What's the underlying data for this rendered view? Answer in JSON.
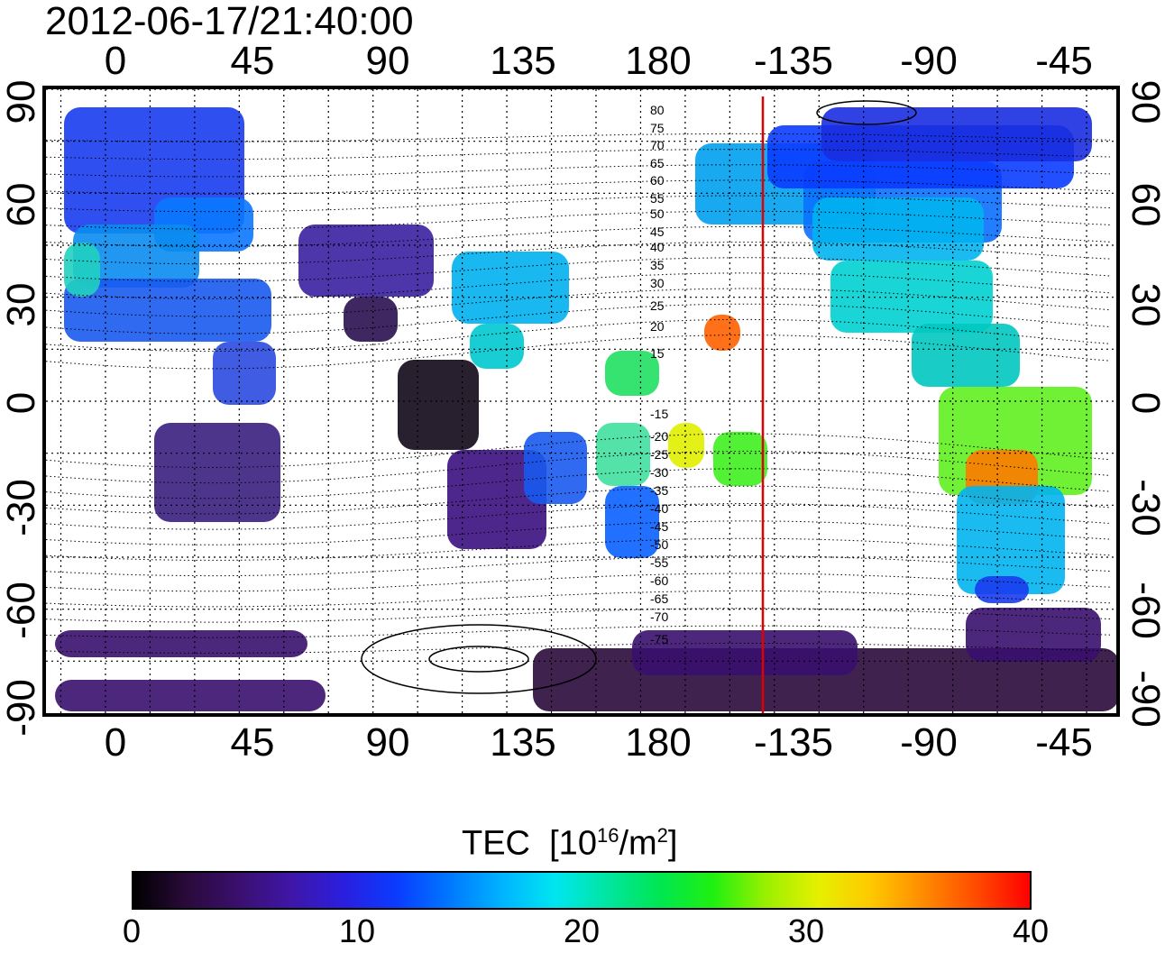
{
  "title": "2012-06-17/21:40:00",
  "axes": {
    "lon_ticks": [
      "0",
      "45",
      "90",
      "135",
      "180",
      "-135",
      "-90",
      "-45"
    ],
    "lat_ticks": [
      "90",
      "60",
      "30",
      "0",
      "-30",
      "-60",
      "-90"
    ],
    "lon_range": [
      -20,
      340
    ],
    "lat_range": [
      -90,
      90
    ],
    "grid": "dotted-15deg"
  },
  "overlay": {
    "contour_labels": [
      "80",
      "75",
      "70",
      "65",
      "60",
      "55",
      "50",
      "45",
      "40",
      "35",
      "30",
      "25",
      "20",
      "15",
      "-15",
      "-20",
      "-25",
      "-30",
      "-35",
      "-40",
      "-45",
      "-50",
      "-55",
      "-60",
      "-65",
      "-70",
      "-75"
    ],
    "meridian_marker_color": "#e00000"
  },
  "colorbar": {
    "label": "TEC",
    "unit_base": "[10",
    "unit_exp": "16",
    "unit_mid": "/m",
    "unit_exp2": "2",
    "unit_end": "]",
    "ticks": [
      "0",
      "10",
      "20",
      "30",
      "40"
    ],
    "range": [
      0,
      40
    ],
    "colors": [
      "#000000",
      "#2a0a3a",
      "#3a0f6e",
      "#3f16a8",
      "#2a1fe0",
      "#0a3cff",
      "#0078ff",
      "#00b4ff",
      "#00e6f0",
      "#00e6a0",
      "#00e650",
      "#20f010",
      "#9af000",
      "#e6f000",
      "#ffc800",
      "#ff8a00",
      "#ff4a00",
      "#ff0000"
    ]
  }
}
